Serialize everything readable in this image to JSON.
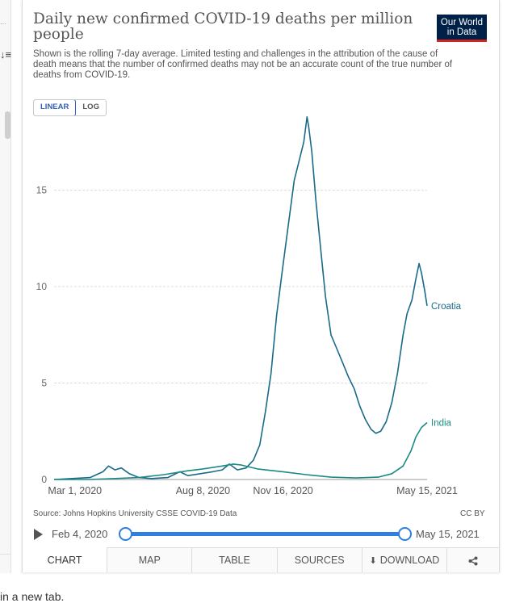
{
  "app": {
    "left_dots": "...",
    "sort_icon": "sort-icon",
    "footer_text": "in a new tab."
  },
  "chart_header": {
    "title": "Daily new confirmed COVID-19 deaths per million people",
    "subtitle": "Shown is the rolling 7-day average. Limited testing and challenges in the attribution of the cause of death means that the number of confirmed deaths may not be an accurate count of the true number of deaths from COVID-19.",
    "logo_line1": "Our World",
    "logo_line2": "in Data"
  },
  "scale_toggle": {
    "linear": "LINEAR",
    "log": "LOG",
    "selected": "LINEAR"
  },
  "chart_data": {
    "type": "line",
    "title": "Daily new confirmed COVID-19 deaths per million people",
    "x_tick_labels": [
      "Mar 1, 2020",
      "Aug 8, 2020",
      "Nov 16, 2020",
      "May 15, 2021"
    ],
    "x_ticks": [
      "2020-03-01",
      "2020-08-08",
      "2020-11-16",
      "2021-05-15"
    ],
    "xlim": [
      "2020-02-04",
      "2021-05-15"
    ],
    "y_ticks": [
      0,
      5,
      10,
      15
    ],
    "ylim": [
      0,
      19
    ],
    "grid": true,
    "series": [
      {
        "name": "Croatia",
        "color": "#1a6a8a",
        "points": [
          [
            "2020-02-04",
            0
          ],
          [
            "2020-03-20",
            0.1
          ],
          [
            "2020-04-05",
            0.4
          ],
          [
            "2020-04-12",
            0.7
          ],
          [
            "2020-04-20",
            0.5
          ],
          [
            "2020-04-28",
            0.6
          ],
          [
            "2020-05-08",
            0.3
          ],
          [
            "2020-05-20",
            0.1
          ],
          [
            "2020-06-05",
            0.05
          ],
          [
            "2020-06-25",
            0.1
          ],
          [
            "2020-07-10",
            0.4
          ],
          [
            "2020-07-20",
            0.2
          ],
          [
            "2020-08-05",
            0.3
          ],
          [
            "2020-08-20",
            0.4
          ],
          [
            "2020-09-01",
            0.5
          ],
          [
            "2020-09-10",
            0.8
          ],
          [
            "2020-09-20",
            0.5
          ],
          [
            "2020-10-01",
            0.6
          ],
          [
            "2020-10-10",
            1.0
          ],
          [
            "2020-10-18",
            1.8
          ],
          [
            "2020-10-25",
            3.5
          ],
          [
            "2020-11-01",
            5.5
          ],
          [
            "2020-11-08",
            8.5
          ],
          [
            "2020-11-15",
            10.8
          ],
          [
            "2020-11-22",
            13.0
          ],
          [
            "2020-11-30",
            15.5
          ],
          [
            "2020-12-06",
            16.5
          ],
          [
            "2020-12-12",
            17.5
          ],
          [
            "2020-12-16",
            18.8
          ],
          [
            "2020-12-18",
            18.3
          ],
          [
            "2020-12-22",
            17.0
          ],
          [
            "2020-12-27",
            14.5
          ],
          [
            "2021-01-02",
            12.0
          ],
          [
            "2021-01-08",
            9.5
          ],
          [
            "2021-01-15",
            7.5
          ],
          [
            "2021-01-22",
            6.8
          ],
          [
            "2021-01-30",
            6.0
          ],
          [
            "2021-02-06",
            5.3
          ],
          [
            "2021-02-13",
            4.7
          ],
          [
            "2021-02-20",
            3.8
          ],
          [
            "2021-02-27",
            3.1
          ],
          [
            "2021-03-06",
            2.6
          ],
          [
            "2021-03-12",
            2.4
          ],
          [
            "2021-03-18",
            2.5
          ],
          [
            "2021-03-25",
            3.0
          ],
          [
            "2021-04-01",
            4.0
          ],
          [
            "2021-04-08",
            5.5
          ],
          [
            "2021-04-15",
            7.5
          ],
          [
            "2021-04-20",
            8.6
          ],
          [
            "2021-04-26",
            9.3
          ],
          [
            "2021-05-01",
            10.4
          ],
          [
            "2021-05-05",
            11.2
          ],
          [
            "2021-05-08",
            10.7
          ],
          [
            "2021-05-12",
            9.8
          ],
          [
            "2021-05-15",
            9.0
          ]
        ]
      },
      {
        "name": "India",
        "color": "#1a8a82",
        "points": [
          [
            "2020-02-04",
            0
          ],
          [
            "2020-03-20",
            0
          ],
          [
            "2020-04-20",
            0.05
          ],
          [
            "2020-05-20",
            0.1
          ],
          [
            "2020-06-20",
            0.25
          ],
          [
            "2020-07-20",
            0.45
          ],
          [
            "2020-08-08",
            0.55
          ],
          [
            "2020-09-01",
            0.7
          ],
          [
            "2020-09-15",
            0.8
          ],
          [
            "2020-09-25",
            0.75
          ],
          [
            "2020-10-15",
            0.55
          ],
          [
            "2020-11-16",
            0.4
          ],
          [
            "2020-12-15",
            0.25
          ],
          [
            "2021-01-15",
            0.12
          ],
          [
            "2021-02-15",
            0.08
          ],
          [
            "2021-03-15",
            0.12
          ],
          [
            "2021-04-01",
            0.3
          ],
          [
            "2021-04-15",
            0.7
          ],
          [
            "2021-04-25",
            1.5
          ],
          [
            "2021-05-01",
            2.2
          ],
          [
            "2021-05-08",
            2.7
          ],
          [
            "2021-05-15",
            2.95
          ]
        ]
      }
    ]
  },
  "source": "Source: Johns Hopkins University CSSE COVID-19 Data",
  "license": "CC BY",
  "timeline": {
    "start_label": "Feb 4, 2020",
    "end_label": "May 15, 2021",
    "start_fraction": 0.0,
    "end_fraction": 1.0
  },
  "tabs": [
    {
      "label": "CHART",
      "active": true
    },
    {
      "label": "MAP"
    },
    {
      "label": "TABLE"
    },
    {
      "label": "SOURCES"
    },
    {
      "label": "DOWNLOAD"
    }
  ],
  "share_icon": "share-icon"
}
